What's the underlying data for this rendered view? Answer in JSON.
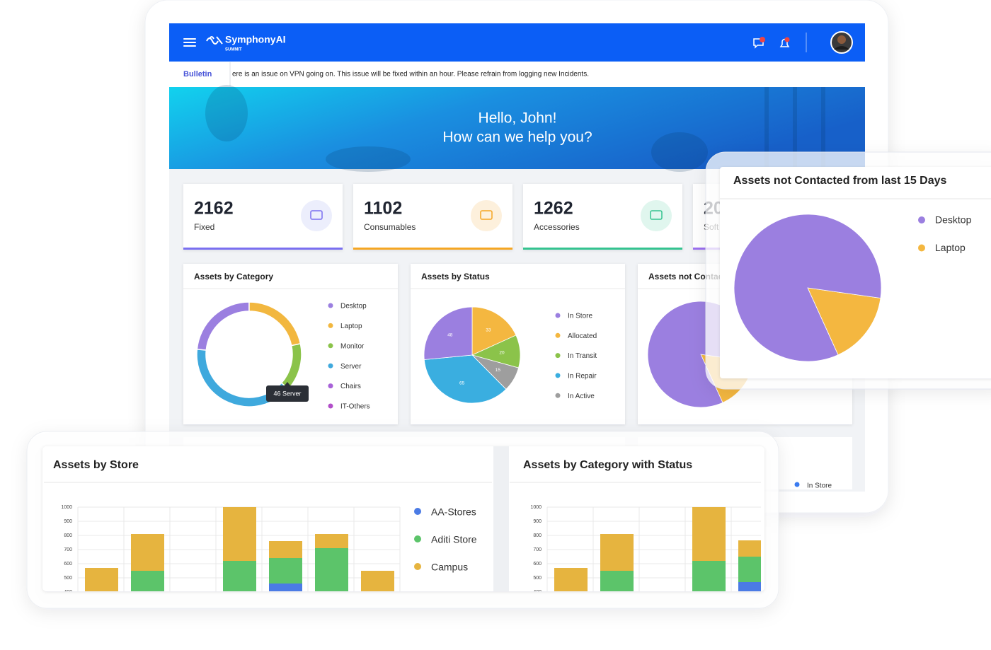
{
  "header": {
    "brand": "SymphonyAI",
    "product": "SUMMIT"
  },
  "bulletin": {
    "label": "Bulletin",
    "text": "ere is an issue on VPN going on. This issue will be fixed within an hour. Please refrain from logging new Incidents."
  },
  "hero": {
    "greeting": "Hello, John!",
    "prompt": "How can we help you?"
  },
  "stats": [
    {
      "value": "2162",
      "label": "Fixed"
    },
    {
      "value": "1102",
      "label": "Consumables"
    },
    {
      "value": "1262",
      "label": "Accessories"
    },
    {
      "value": "20",
      "label": "Soft"
    }
  ],
  "background_legend": [
    "In Store"
  ],
  "chart_data": [
    {
      "type": "donut",
      "title": "Assets by Category",
      "categories": [
        "Desktop",
        "Laptop",
        "Monitor",
        "Server",
        "Chairs",
        "IT-Others"
      ],
      "values": [
        27,
        25,
        17,
        46,
        0,
        0
      ],
      "colors": [
        "#9b7fe0",
        "#f2b73f",
        "#8bc34a",
        "#3fa9dd",
        "#a862d8",
        "#b24fc9"
      ],
      "tooltip": "46 Server"
    },
    {
      "type": "pie",
      "title": "Assets by Status",
      "categories": [
        "In Store",
        "Allocated",
        "In Transit",
        "In Repair",
        "In Active"
      ],
      "values": [
        48,
        33,
        20,
        65,
        15
      ],
      "colors": [
        "#9b7fe0",
        "#f4b740",
        "#8bc34a",
        "#3aaee0",
        "#9e9e9e"
      ],
      "data_labels": true
    },
    {
      "type": "pie",
      "title": "Assets not Contacted  from last 15 Days",
      "categories": [
        "Desktop",
        "Laptop"
      ],
      "values": [
        84,
        16
      ],
      "colors": [
        "#9b7fe0",
        "#f4b740"
      ]
    },
    {
      "type": "stacked-bar",
      "title": "Assets by Store",
      "categories": [
        null,
        null,
        null,
        null,
        null,
        null,
        null
      ],
      "series": [
        {
          "name": "AA-Stores",
          "color": "#4b7be5",
          "values": [
            0,
            0,
            0,
            0,
            460,
            0,
            0
          ]
        },
        {
          "name": "Aditi Store",
          "color": "#5cc46a",
          "values": [
            0,
            550,
            0,
            620,
            180,
            710,
            0
          ]
        },
        {
          "name": "Campus",
          "color": "#e6b43f",
          "values": [
            570,
            260,
            0,
            380,
            120,
            100,
            550
          ]
        }
      ],
      "ylim": [
        0,
        1000
      ],
      "yticks": [
        400,
        500,
        600,
        700,
        800,
        900,
        1000
      ],
      "grid": true
    },
    {
      "type": "stacked-bar",
      "title": "Assets by Category with Status",
      "categories": [
        null,
        null,
        null,
        null,
        null
      ],
      "series": [
        {
          "color": "#4b7be5",
          "values": [
            0,
            0,
            0,
            0,
            470
          ]
        },
        {
          "color": "#5cc46a",
          "values": [
            0,
            550,
            0,
            620,
            180
          ]
        },
        {
          "color": "#e6b43f",
          "values": [
            570,
            260,
            0,
            380,
            115
          ]
        }
      ],
      "ylim": [
        0,
        1000
      ],
      "yticks": [
        400,
        500,
        600,
        700,
        800,
        900,
        1000
      ],
      "grid": true
    }
  ]
}
